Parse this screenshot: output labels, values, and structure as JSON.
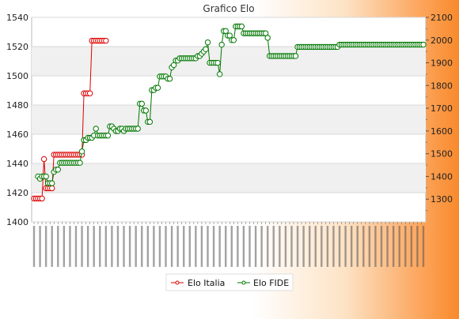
{
  "chart_data": {
    "type": "line",
    "title": "Grafico Elo",
    "grid": true,
    "legend_position": "bottom",
    "left_axis": {
      "min": 1400,
      "max": 1540,
      "ticks": [
        1400,
        1420,
        1440,
        1460,
        1480,
        1500,
        1520,
        1540
      ]
    },
    "right_axis": {
      "min": 1200,
      "max": 2100,
      "ticks": [
        1300,
        1400,
        1500,
        1600,
        1700,
        1800,
        1900,
        2000,
        2100
      ]
    },
    "series": [
      {
        "name": "Elo Italia",
        "axis": "left",
        "color": "#dd0000",
        "values": [
          1416,
          1416,
          1416,
          1416,
          1416,
          1443,
          1423,
          1423,
          1423,
          1423,
          1446,
          1446,
          1446,
          1446,
          1446,
          1446,
          1446,
          1446,
          1446,
          1446,
          1446,
          1446,
          1446,
          1446,
          1446,
          1488,
          1488,
          1488,
          1488,
          1524,
          1524,
          1524,
          1524,
          1524,
          1524,
          1524,
          1524
        ]
      },
      {
        "name": "Elo FIDE",
        "axis": "right",
        "color": "#007700",
        "values": [
          1400,
          1390,
          1400,
          1400,
          1400,
          1370,
          1370,
          1370,
          1420,
          1430,
          1430,
          1460,
          1460,
          1460,
          1460,
          1460,
          1460,
          1460,
          1460,
          1460,
          1460,
          1460,
          1510,
          1560,
          1560,
          1570,
          1570,
          1570,
          1580,
          1610,
          1580,
          1580,
          1580,
          1580,
          1580,
          1580,
          1620,
          1620,
          1610,
          1600,
          1600,
          1610,
          1610,
          1600,
          1610,
          1610,
          1610,
          1610,
          1610,
          1610,
          1610,
          1720,
          1720,
          1690,
          1690,
          1640,
          1640,
          1780,
          1780,
          1790,
          1790,
          1840,
          1840,
          1840,
          1840,
          1830,
          1830,
          1880,
          1890,
          1910,
          1910,
          1920,
          1920,
          1920,
          1920,
          1920,
          1920,
          1920,
          1920,
          1920,
          1930,
          1930,
          1940,
          1950,
          1960,
          1990,
          1900,
          1900,
          1900,
          1900,
          1900,
          1850,
          1980,
          2040,
          2040,
          2020,
          2020,
          2000,
          2000,
          2060,
          2060,
          2060,
          2060,
          2030,
          2030,
          2030,
          2030,
          2030,
          2030,
          2030,
          2030,
          2030,
          2030,
          2030,
          2030,
          2010,
          1930,
          1930,
          1930,
          1930,
          1930,
          1930,
          1930,
          1930,
          1930,
          1930,
          1930,
          1930,
          1930,
          1930,
          1970,
          1970,
          1970,
          1970,
          1970,
          1970,
          1970,
          1970,
          1970,
          1970,
          1970,
          1970,
          1970,
          1970,
          1970,
          1970,
          1970,
          1970,
          1970,
          1970,
          1970,
          1980,
          1980,
          1980,
          1980,
          1980,
          1980,
          1980,
          1980,
          1980,
          1980,
          1980,
          1980,
          1980,
          1980,
          1980,
          1980,
          1980,
          1980,
          1980,
          1980,
          1980,
          1980,
          1980,
          1980,
          1980,
          1980,
          1980,
          1980,
          1980,
          1980,
          1980,
          1980,
          1980,
          1980,
          1980,
          1980,
          1980,
          1980,
          1980,
          1980,
          1980,
          1980,
          1980
        ]
      }
    ]
  }
}
